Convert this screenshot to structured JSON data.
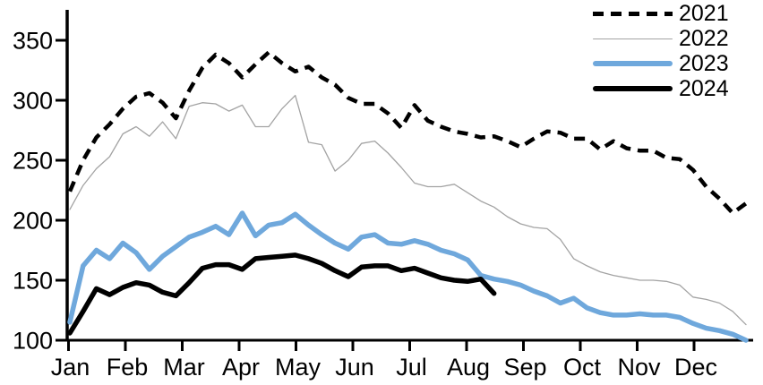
{
  "chart_data": {
    "type": "line",
    "title": "",
    "xlabel": "",
    "ylabel": "",
    "x_unit": "weekly",
    "x_tick_labels": [
      "Jan",
      "Feb",
      "Mar",
      "Apr",
      "May",
      "Jun",
      "Jul",
      "Aug",
      "Sep",
      "Oct",
      "Nov",
      "Dec"
    ],
    "y_tick_labels": [
      100,
      150,
      200,
      250,
      300,
      350
    ],
    "ylim": [
      100,
      365
    ],
    "grid": false,
    "legend_position": "top-right",
    "axis_color": "#000000",
    "series": [
      {
        "name": "2021",
        "color": "#000000",
        "style": "dashed",
        "width": 4.5,
        "values": [
          224,
          250,
          269,
          280,
          293,
          303,
          306,
          298,
          285,
          308,
          327,
          338,
          331,
          319,
          330,
          340,
          331,
          324,
          328,
          319,
          313,
          302,
          297,
          297,
          289,
          277,
          296,
          283,
          278,
          274,
          272,
          269,
          270,
          266,
          261,
          268,
          274,
          273,
          268,
          268,
          259,
          266,
          260,
          258,
          258,
          252,
          251,
          242,
          228,
          218,
          206,
          214
        ]
      },
      {
        "name": "2022",
        "color": "#a3a3a3",
        "style": "solid",
        "width": 1.3,
        "values": [
          209,
          229,
          243,
          253,
          272,
          278,
          270,
          282,
          268,
          295,
          298,
          297,
          291,
          296,
          278,
          278,
          293,
          304,
          265,
          263,
          241,
          250,
          264,
          266,
          256,
          244,
          231,
          228,
          228,
          230,
          223,
          216,
          211,
          203,
          197,
          194,
          193,
          184,
          168,
          162,
          157,
          154,
          152,
          150,
          150,
          149,
          146,
          136,
          134,
          131,
          124,
          113
        ]
      },
      {
        "name": "2023",
        "color": "#6FA8DC",
        "style": "solid",
        "width": 5.5,
        "values": [
          115,
          162,
          175,
          168,
          181,
          173,
          159,
          170,
          178,
          186,
          190,
          195,
          188,
          206,
          187,
          196,
          198,
          205,
          196,
          188,
          181,
          176,
          186,
          188,
          181,
          180,
          183,
          180,
          175,
          172,
          167,
          154,
          151,
          149,
          146,
          141,
          137,
          131,
          135,
          127,
          123,
          121,
          121,
          122,
          121,
          121,
          119,
          114,
          110,
          108,
          105,
          100
        ]
      },
      {
        "name": "2024",
        "color": "#000000",
        "style": "solid",
        "width": 5.5,
        "values": [
          106,
          124,
          143,
          138,
          144,
          148,
          146,
          140,
          137,
          148,
          160,
          163,
          163,
          159,
          168,
          169,
          170,
          171,
          168,
          164,
          158,
          153,
          161,
          162,
          162,
          158,
          160,
          156,
          152,
          150,
          149,
          151,
          139
        ]
      }
    ]
  }
}
